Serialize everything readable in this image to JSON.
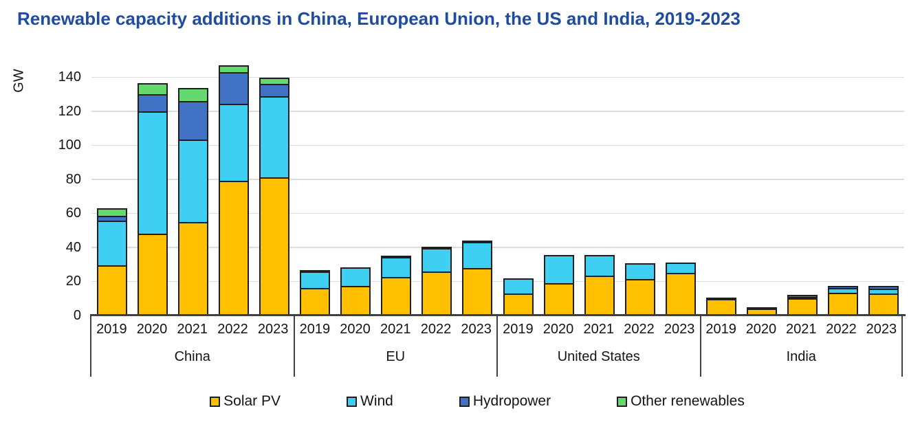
{
  "title": "Renewable capacity additions in China, European Union, the US and India, 2019-2023",
  "chart_data": {
    "type": "bar",
    "stacked": true,
    "title": "Renewable capacity additions in China, European Union, the US and India, 2019-2023",
    "ylabel": "GW",
    "xlabel": "",
    "unit": "GW",
    "ylim": [
      0,
      150
    ],
    "yticks": [
      0,
      20,
      40,
      60,
      80,
      100,
      120,
      140
    ],
    "grid": true,
    "legend_position": "bottom",
    "series": [
      {
        "name": "Solar PV",
        "color": "#FFC000"
      },
      {
        "name": "Wind",
        "color": "#3ECFF2"
      },
      {
        "name": "Hydropower",
        "color": "#4272C4"
      },
      {
        "name": "Other renewables",
        "color": "#66D96E"
      }
    ],
    "groups": [
      {
        "label": "China",
        "years": [
          "2019",
          "2020",
          "2021",
          "2022",
          "2023"
        ],
        "values": {
          "Solar PV": [
            29.5,
            48,
            55,
            79,
            81
          ],
          "Wind": [
            27,
            72.5,
            49,
            46,
            48.5
          ],
          "Hydropower": [
            3.5,
            11,
            23.5,
            19.5,
            8
          ],
          "Other renewables": [
            5.5,
            7.5,
            8.5,
            5,
            4.5
          ]
        }
      },
      {
        "label": "EU",
        "years": [
          "2019",
          "2020",
          "2021",
          "2022",
          "2023"
        ],
        "values": {
          "Solar PV": [
            16,
            17.5,
            22.5,
            26,
            28
          ],
          "Wind": [
            10.5,
            11.5,
            12.5,
            14.5,
            16
          ],
          "Hydropower": [
            1,
            0,
            1.5,
            1,
            1
          ],
          "Other renewables": [
            0,
            0,
            0,
            0,
            0
          ]
        }
      },
      {
        "label": "United States",
        "years": [
          "2019",
          "2020",
          "2021",
          "2022",
          "2023"
        ],
        "values": {
          "Solar PV": [
            13,
            19,
            23.5,
            21.5,
            25
          ],
          "Wind": [
            9.5,
            17.5,
            13,
            10,
            7
          ],
          "Hydropower": [
            0,
            0,
            0,
            0,
            0
          ],
          "Other renewables": [
            0,
            0,
            0,
            0,
            0
          ]
        }
      },
      {
        "label": "India",
        "years": [
          "2019",
          "2020",
          "2021",
          "2022",
          "2023"
        ],
        "values": {
          "Solar PV": [
            9.5,
            4,
            10,
            13.5,
            13
          ],
          "Wind": [
            2,
            0,
            1,
            3.5,
            3.5
          ],
          "Hydropower": [
            0,
            1.5,
            2,
            2,
            2.5
          ],
          "Other renewables": [
            0,
            0,
            0,
            0,
            0
          ]
        }
      }
    ]
  },
  "colors": {
    "title_text": "#1E4CA1",
    "axis_line": "#404040",
    "gridline": "#DCDCDC",
    "tick_text": "#141414",
    "bar_border": "#1F1F1F",
    "background": "#FFFFFF"
  }
}
